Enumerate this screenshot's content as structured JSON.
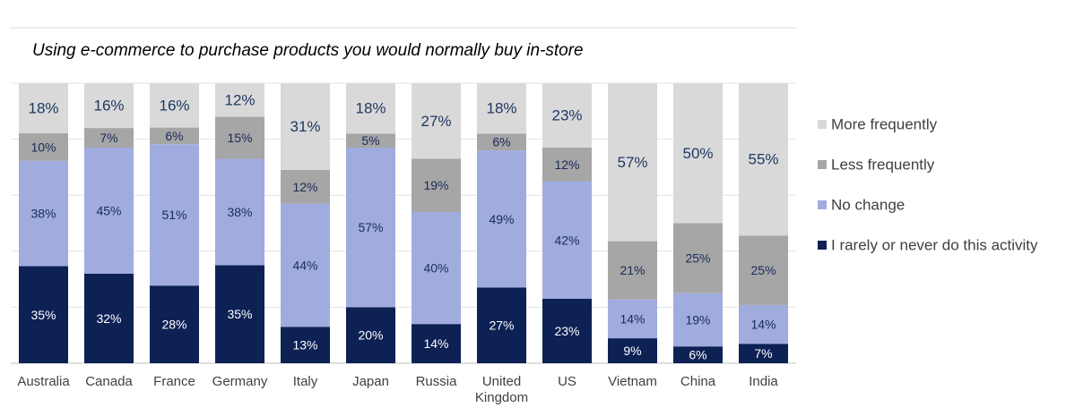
{
  "chart_data": {
    "type": "bar",
    "stacked": true,
    "normalized_percent": true,
    "title": "Using e-commerce to purchase products you would normally buy in-store",
    "categories": [
      "Australia",
      "Canada",
      "France",
      "Germany",
      "Italy",
      "Japan",
      "Russia",
      "United Kingdom",
      "US",
      "Vietnam",
      "China",
      "India"
    ],
    "series": [
      {
        "name": "I rarely or never do this activity",
        "color": "#0d2155",
        "label_color": "#ffffff",
        "values": [
          35,
          32,
          28,
          35,
          13,
          20,
          14,
          27,
          23,
          9,
          6,
          7
        ]
      },
      {
        "name": "No change",
        "color": "#a1acde",
        "label_color": "#1a2a5a",
        "values": [
          38,
          45,
          51,
          38,
          44,
          57,
          40,
          49,
          42,
          14,
          19,
          14
        ]
      },
      {
        "name": "Less frequently",
        "color": "#a6a6a6",
        "label_color": "#1a2a5a",
        "values": [
          10,
          7,
          6,
          15,
          12,
          5,
          19,
          6,
          12,
          21,
          25,
          25
        ]
      },
      {
        "name": "More frequently",
        "color": "#d9d9d9",
        "label_color": "#1f3864",
        "values": [
          18,
          16,
          16,
          12,
          31,
          18,
          27,
          18,
          23,
          57,
          50,
          55
        ]
      }
    ],
    "legend_order": [
      "More frequently",
      "Less frequently",
      "No change",
      "I rarely or never do this activity"
    ],
    "legend_position": "right",
    "grid": true,
    "value_suffix": "%"
  }
}
